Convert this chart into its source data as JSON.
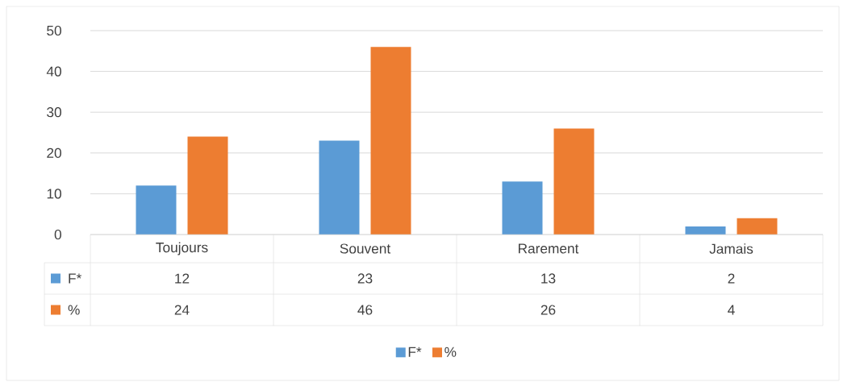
{
  "chart_data": {
    "type": "bar",
    "categories": [
      "Toujours",
      "Souvent",
      "Rarement",
      "Jamais"
    ],
    "series": [
      {
        "name": "F*",
        "color": "#5b9bd5",
        "values": [
          12,
          23,
          13,
          2
        ]
      },
      {
        "name": "%",
        "color": "#ed7d31",
        "values": [
          24,
          46,
          26,
          4
        ]
      }
    ],
    "ylim": [
      0,
      50
    ],
    "yticks": [
      0,
      10,
      20,
      30,
      40,
      50
    ],
    "grid": "y",
    "legend": "bottom",
    "data_labels": true
  }
}
